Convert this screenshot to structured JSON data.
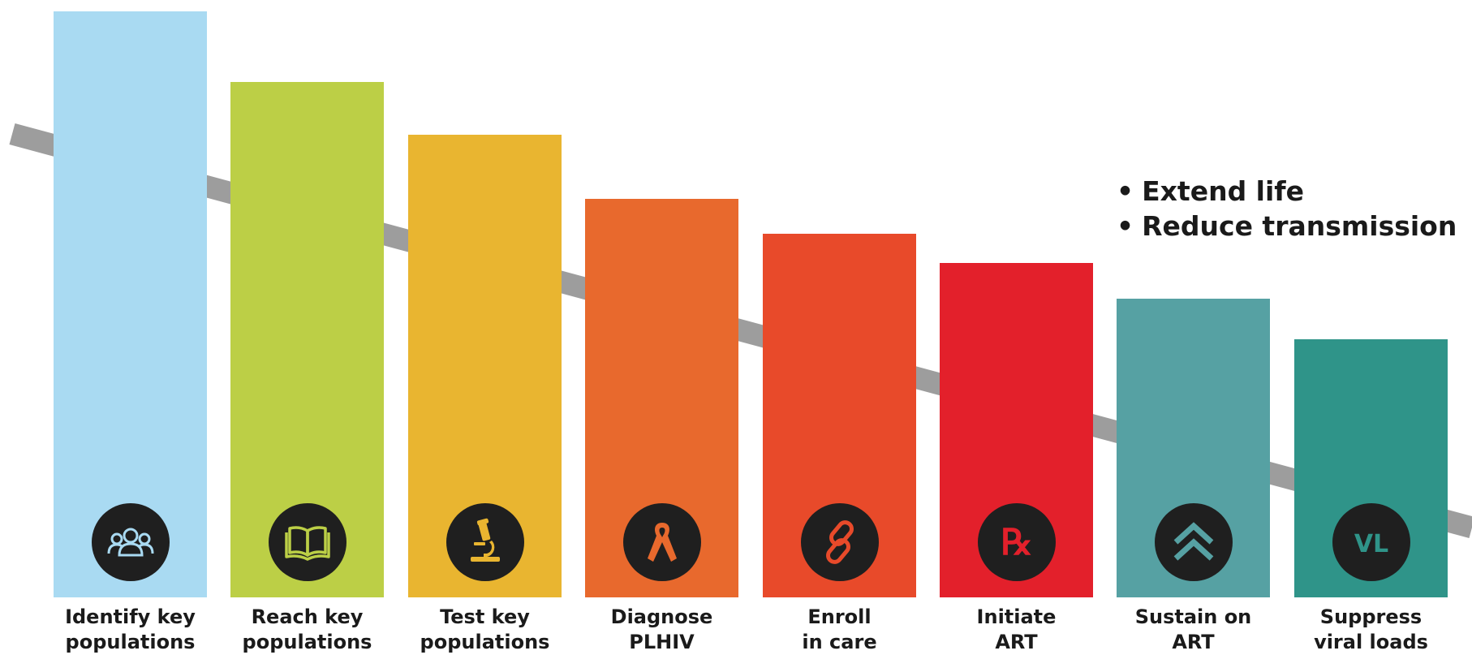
{
  "stages": [
    {
      "line1": "Identify key",
      "line2": "populations",
      "color": "#a9daf2",
      "icon": "people-group-icon",
      "level": 1.0
    },
    {
      "line1": "Reach key",
      "line2": "populations",
      "color": "#bccf46",
      "icon": "open-book-icon",
      "level": 0.88
    },
    {
      "line1": "Test key",
      "line2": "populations",
      "color": "#e9b530",
      "icon": "microscope-icon",
      "level": 0.79
    },
    {
      "line1": "Diagnose",
      "line2": "PLHIV",
      "color": "#e8692d",
      "icon": "awareness-ribbon-icon",
      "level": 0.68
    },
    {
      "line1": "Enroll",
      "line2": "in care",
      "color": "#e84a2a",
      "icon": "chain-link-icon",
      "level": 0.62
    },
    {
      "line1": "Initiate",
      "line2": "ART",
      "color": "#e3202b",
      "icon": "prescription-icon",
      "level": 0.57
    },
    {
      "line1": "Sustain on",
      "line2": "ART",
      "color": "#56a1a3",
      "icon": "double-chevron-up-icon",
      "level": 0.51
    },
    {
      "line1": "Suppress",
      "line2": "viral loads",
      "color": "#2f9489",
      "icon": "vl-icon",
      "level": 0.44
    }
  ],
  "bullets": [
    "Extend life",
    "Reduce transmission"
  ],
  "icon_texts": {
    "prescription": "℞",
    "vl": "VL"
  },
  "colors": {
    "trend_line": "#9d9d9d",
    "badge": "#1f1f1f"
  }
}
